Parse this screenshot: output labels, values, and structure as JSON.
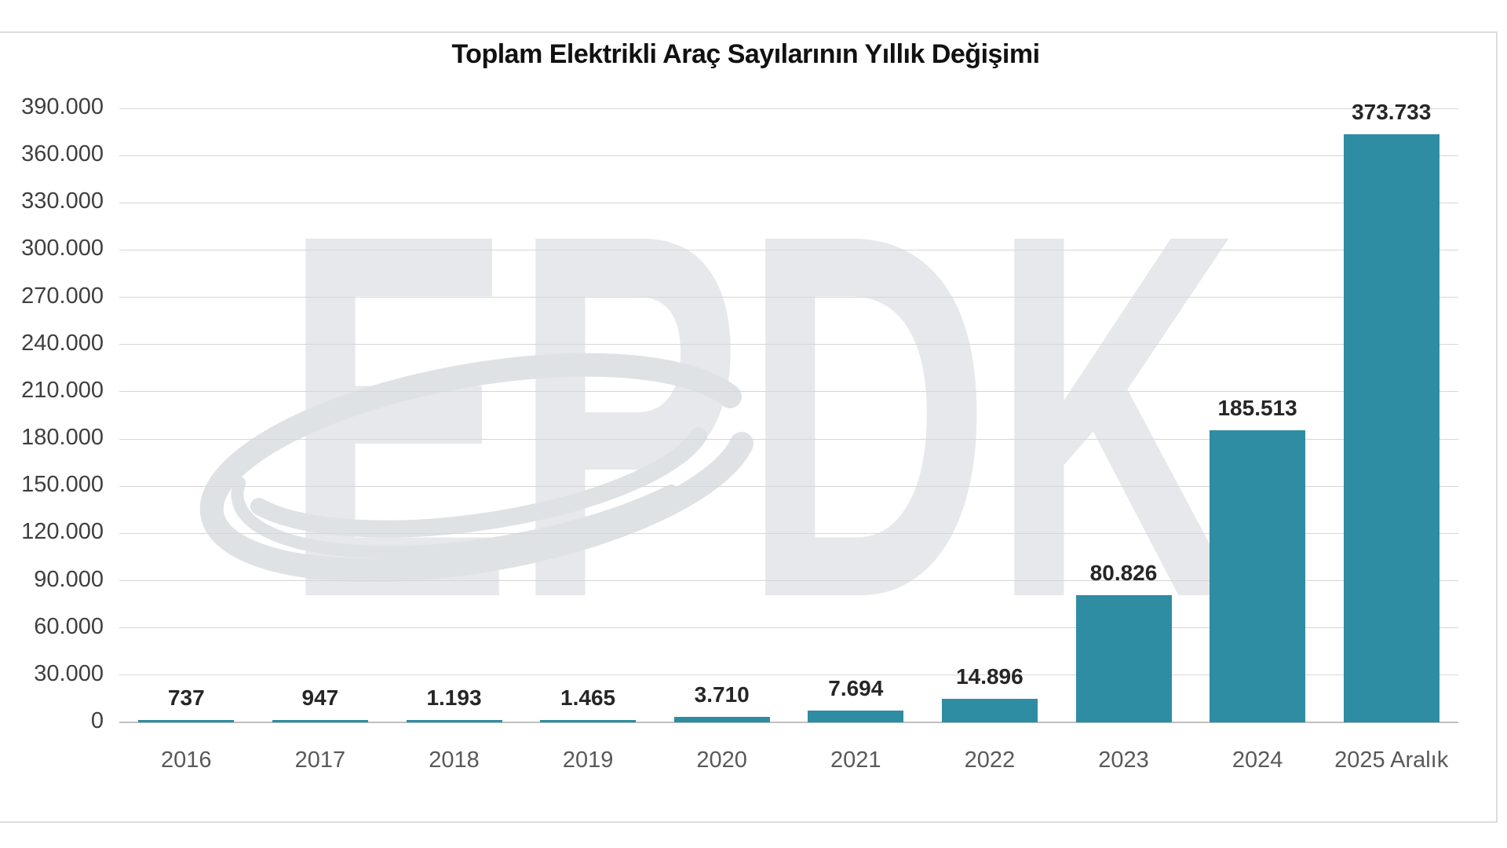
{
  "chart_data": {
    "type": "bar",
    "title": "Toplam Elektrikli Araç Sayılarının Yıllık Değişimi",
    "categories": [
      "2016",
      "2017",
      "2018",
      "2019",
      "2020",
      "2021",
      "2022",
      "2023",
      "2024",
      "2025 Aralık"
    ],
    "values": [
      737,
      947,
      1193,
      1465,
      3710,
      7694,
      14896,
      80826,
      185513,
      373733
    ],
    "data_labels": [
      "737",
      "947",
      "1.193",
      "1.465",
      "3.710",
      "7.694",
      "14.896",
      "80.826",
      "185.513",
      "373.733"
    ],
    "xlabel": "",
    "ylabel": "",
    "ylim": [
      0,
      390000
    ],
    "ytick_step": 30000,
    "ytick_labels": [
      "0",
      "30.000",
      "60.000",
      "90.000",
      "120.000",
      "150.000",
      "180.000",
      "210.000",
      "240.000",
      "270.000",
      "300.000",
      "330.000",
      "360.000",
      "390.000"
    ],
    "grid": true,
    "legend": false,
    "bar_color": "#2E8CA3",
    "watermark_text": "EPDK"
  },
  "colors": {
    "bar": "#2E8CA3",
    "title": "#111111",
    "ytick": "#3F3F3F",
    "xtick": "#595959",
    "data_label": "#262626",
    "gridline": "#D6D6D6",
    "baseline": "#BFBFBF",
    "frame_border": "#DCDCDC",
    "watermark_letters": "#E6E8EB",
    "watermark_swoosh": "#DFE2E5"
  }
}
